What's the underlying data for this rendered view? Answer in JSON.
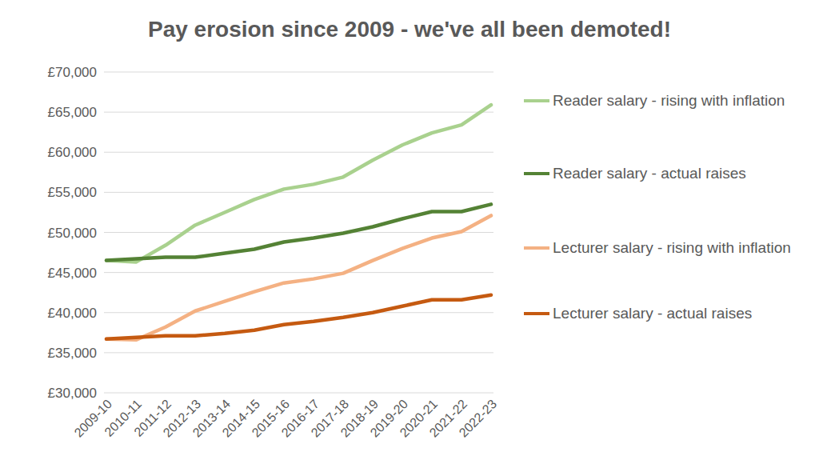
{
  "chart_data": {
    "type": "line",
    "title": "Pay erosion since 2009 - we've all been demoted!",
    "categories": [
      "2009-10",
      "2010-11",
      "2011-12",
      "2012-13",
      "2013-14",
      "2014-15",
      "2015-16",
      "2016-17",
      "2017-18",
      "2018-19",
      "2019-20",
      "2020-21",
      "2021-22",
      "2022-23"
    ],
    "series": [
      {
        "name": "Reader salary - rising with inflation",
        "color": "#a9d18e",
        "values": [
          46500,
          46300,
          48400,
          50900,
          52500,
          54100,
          55400,
          56000,
          56900,
          59000,
          60900,
          62400,
          63400,
          65900
        ]
      },
      {
        "name": "Reader salary - actual raises",
        "color": "#548235",
        "values": [
          46500,
          46700,
          46900,
          46900,
          47400,
          47900,
          48800,
          49300,
          49900,
          50700,
          51700,
          52600,
          52600,
          53500
        ]
      },
      {
        "name": "Lecturer salary - rising with inflation",
        "color": "#f4b183",
        "values": [
          36700,
          36600,
          38200,
          40200,
          41400,
          42600,
          43700,
          44200,
          44900,
          46500,
          48000,
          49300,
          50100,
          52100
        ]
      },
      {
        "name": "Lecturer salary - actual raises",
        "color": "#c55a11",
        "values": [
          36700,
          36900,
          37100,
          37100,
          37400,
          37800,
          38500,
          38900,
          39400,
          40000,
          40800,
          41600,
          41600,
          42200
        ]
      }
    ],
    "ylim": [
      30000,
      70000
    ],
    "yticks": [
      {
        "value": 30000,
        "label": "£30,000"
      },
      {
        "value": 35000,
        "label": "£35,000"
      },
      {
        "value": 40000,
        "label": "£40,000"
      },
      {
        "value": 45000,
        "label": "£45,000"
      },
      {
        "value": 50000,
        "label": "£50,000"
      },
      {
        "value": 55000,
        "label": "£55,000"
      },
      {
        "value": 60000,
        "label": "£60,000"
      },
      {
        "value": 65000,
        "label": "£65,000"
      },
      {
        "value": 70000,
        "label": "£70,000"
      }
    ],
    "grid": true,
    "legend": "right"
  }
}
